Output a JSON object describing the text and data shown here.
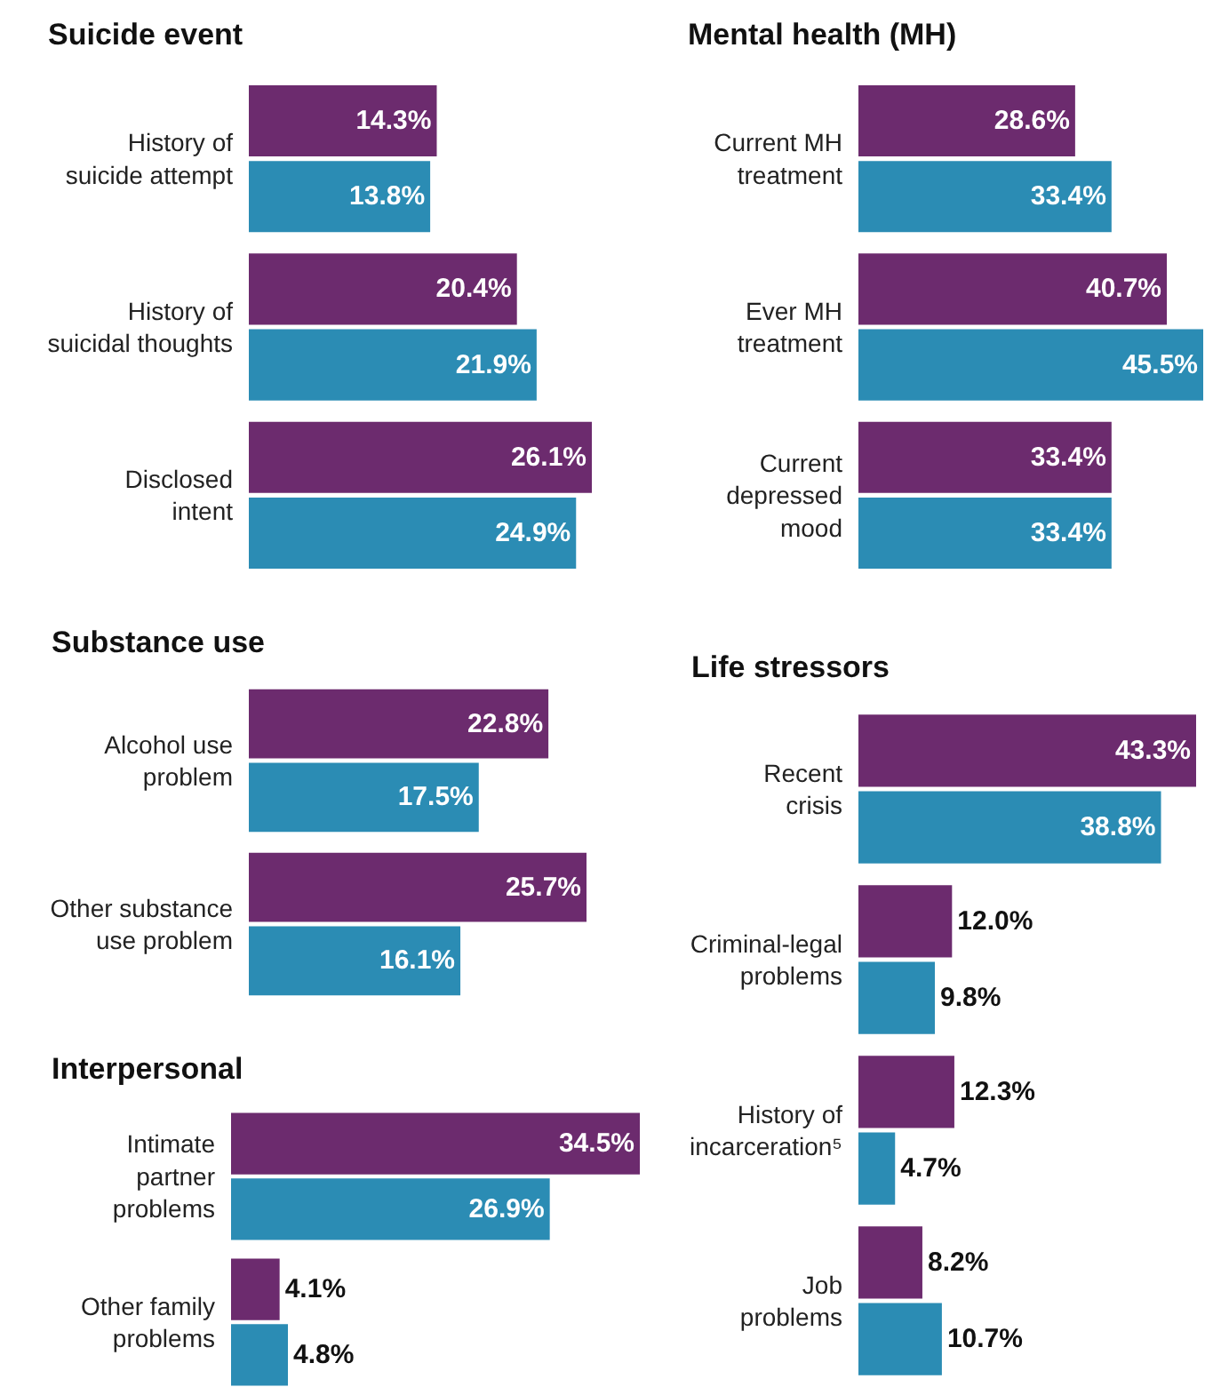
{
  "chart_data": [
    {
      "type": "bar",
      "orientation": "horizontal",
      "title": "Suicide event",
      "categories": [
        "History of\nsuicide attempt",
        "History of\nsuicidal thoughts",
        "Disclosed\nintent"
      ],
      "series": [
        {
          "color": "#6c2b6e",
          "values": [
            14.3,
            20.4,
            26.1
          ],
          "value_labels": [
            "14.3%",
            "20.4%",
            "26.1%"
          ]
        },
        {
          "color": "#2b8cb4",
          "values": [
            13.8,
            21.9,
            24.9
          ],
          "value_labels": [
            "13.8%",
            "21.9%",
            "24.9%"
          ]
        }
      ]
    },
    {
      "type": "bar",
      "orientation": "horizontal",
      "title": "Substance use",
      "categories": [
        "Alcohol use\nproblem",
        "Other substance\nuse problem"
      ],
      "series": [
        {
          "color": "#6c2b6e",
          "values": [
            22.8,
            25.7
          ],
          "value_labels": [
            "22.8%",
            "25.7%"
          ]
        },
        {
          "color": "#2b8cb4",
          "values": [
            17.5,
            16.1
          ],
          "value_labels": [
            "17.5%",
            "16.1%"
          ]
        }
      ]
    },
    {
      "type": "bar",
      "orientation": "horizontal",
      "title": "Interpersonal",
      "categories": [
        "Intimate\npartner\nproblems",
        "Other family\nproblems"
      ],
      "series": [
        {
          "color": "#6c2b6e",
          "values": [
            34.5,
            4.1
          ],
          "value_labels": [
            "34.5%",
            "4.1%"
          ]
        },
        {
          "color": "#2b8cb4",
          "values": [
            26.9,
            4.8
          ],
          "value_labels": [
            "26.9%",
            "4.8%"
          ]
        }
      ]
    },
    {
      "type": "bar",
      "orientation": "horizontal",
      "title": "Mental health (MH)",
      "categories": [
        "Current MH\ntreatment",
        "Ever MH\ntreatment",
        "Current\ndepressed\nmood"
      ],
      "series": [
        {
          "color": "#6c2b6e",
          "values": [
            28.6,
            40.7,
            33.4
          ],
          "value_labels": [
            "28.6%",
            "40.7%",
            "33.4%"
          ]
        },
        {
          "color": "#2b8cb4",
          "values": [
            33.4,
            45.5,
            33.4
          ],
          "value_labels": [
            "33.4%",
            "45.5%",
            "33.4%"
          ]
        }
      ]
    },
    {
      "type": "bar",
      "orientation": "horizontal",
      "title": "Life stressors",
      "categories": [
        "Recent\ncrisis",
        "Criminal-legal\nproblems",
        "History of\nincarceration⁵",
        "Job\nproblems"
      ],
      "series": [
        {
          "color": "#6c2b6e",
          "values": [
            43.3,
            12.0,
            12.3,
            8.2
          ],
          "value_labels": [
            "43.3%",
            "12.0%",
            "12.3%",
            "8.2%"
          ]
        },
        {
          "color": "#2b8cb4",
          "values": [
            38.8,
            9.8,
            4.7,
            10.7
          ],
          "value_labels": [
            "38.8%",
            "9.8%",
            "4.7%",
            "10.7%"
          ]
        }
      ]
    }
  ]
}
